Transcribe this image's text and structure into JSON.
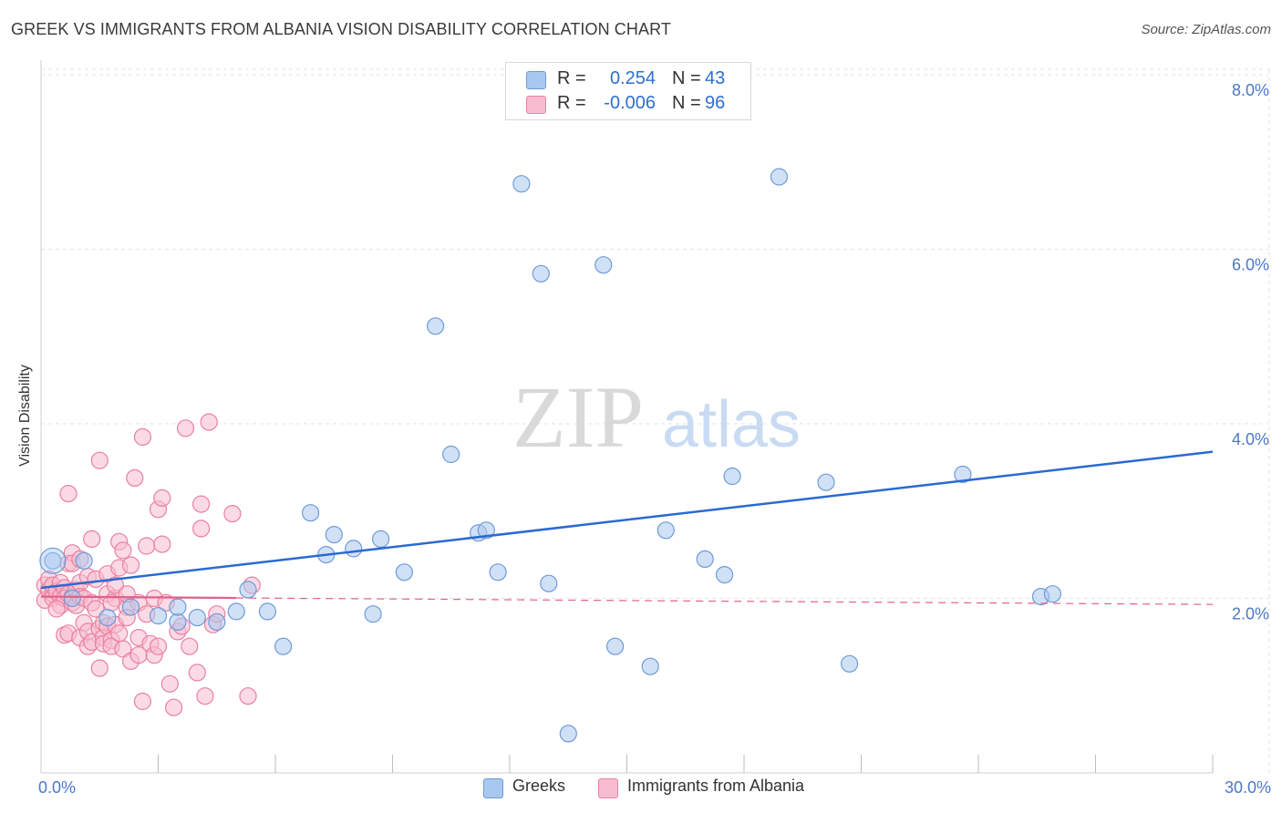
{
  "header": {
    "title": "GREEK VS IMMIGRANTS FROM ALBANIA VISION DISABILITY CORRELATION CHART",
    "source": "Source: ZipAtlas.com"
  },
  "watermark": {
    "zip": "ZIP",
    "atlas": "atlas"
  },
  "colors": {
    "blue_fill": "#a9c8ef",
    "blue_stroke": "#6f9ad8",
    "blue_line": "#2a6ad0",
    "pink_fill": "#f7bcd0",
    "pink_stroke": "#e9809f",
    "pink_line": "#e0628a",
    "tick_text": "#4a78c8",
    "grid": "#e3e3e3"
  },
  "legend_top": {
    "rows": [
      {
        "r_label": "R =",
        "r_value": "0.254",
        "n_label": "N =",
        "n_value": "43",
        "color": "#a9c8ef"
      },
      {
        "r_label": "R =",
        "r_value": "-0.006",
        "n_label": "N =",
        "n_value": "96",
        "color": "#f7bcd0"
      }
    ]
  },
  "legend_bottom": {
    "items": [
      {
        "label": "Greeks",
        "color": "#a9c8ef"
      },
      {
        "label": "Immigrants from Albania",
        "color": "#f7bcd0"
      }
    ]
  },
  "chart_data": {
    "type": "scatter",
    "title": "GREEK VS IMMIGRANTS FROM ALBANIA VISION DISABILITY CORRELATION CHART",
    "xlabel": "",
    "ylabel": "Vision Disability",
    "xlim": [
      0,
      30
    ],
    "ylim": [
      0,
      8
    ],
    "x_tick_labels": [
      "0.0%",
      "30.0%"
    ],
    "y_ticks": [
      2,
      4,
      6,
      8
    ],
    "y_tick_labels": [
      "2.0%",
      "4.0%",
      "6.0%",
      "8.0%"
    ],
    "grid": true,
    "series": [
      {
        "name": "Greeks",
        "R": 0.254,
        "N": 43,
        "trend": {
          "x": [
            0,
            30
          ],
          "y": [
            2.12,
            3.68
          ],
          "style": "solid"
        },
        "points": [
          [
            0.3,
            2.43
          ],
          [
            0.8,
            2.0
          ],
          [
            1.1,
            2.43
          ],
          [
            1.7,
            1.78
          ],
          [
            2.3,
            1.9
          ],
          [
            3.0,
            1.8
          ],
          [
            3.5,
            1.73
          ],
          [
            3.5,
            1.9
          ],
          [
            4.0,
            1.78
          ],
          [
            4.5,
            1.73
          ],
          [
            5.0,
            1.85
          ],
          [
            5.3,
            2.1
          ],
          [
            5.8,
            1.85
          ],
          [
            6.2,
            1.45
          ],
          [
            6.9,
            2.98
          ],
          [
            7.3,
            2.5
          ],
          [
            7.5,
            2.73
          ],
          [
            8.0,
            2.57
          ],
          [
            8.5,
            1.82
          ],
          [
            8.7,
            2.68
          ],
          [
            9.3,
            2.3
          ],
          [
            10.1,
            5.12
          ],
          [
            10.5,
            3.65
          ],
          [
            11.2,
            2.75
          ],
          [
            11.4,
            2.78
          ],
          [
            11.7,
            2.3
          ],
          [
            12.3,
            6.75
          ],
          [
            12.8,
            5.72
          ],
          [
            13.0,
            2.17
          ],
          [
            13.5,
            0.45
          ],
          [
            14.4,
            5.82
          ],
          [
            14.7,
            1.45
          ],
          [
            15.6,
            1.22
          ],
          [
            16.0,
            2.78
          ],
          [
            17.0,
            2.45
          ],
          [
            17.5,
            2.27
          ],
          [
            17.7,
            3.4
          ],
          [
            18.9,
            6.83
          ],
          [
            20.1,
            3.33
          ],
          [
            20.7,
            1.25
          ],
          [
            23.6,
            3.42
          ],
          [
            25.6,
            2.02
          ],
          [
            25.9,
            2.05
          ]
        ]
      },
      {
        "name": "Immigrants from Albania",
        "R": -0.006,
        "N": 96,
        "trend": {
          "x": [
            0,
            30
          ],
          "y": [
            2.02,
            1.93
          ],
          "style": "solid-then-dashed"
        },
        "points": [
          [
            0.1,
            2.15
          ],
          [
            0.1,
            1.98
          ],
          [
            0.2,
            2.1
          ],
          [
            0.2,
            2.22
          ],
          [
            0.3,
            2.05
          ],
          [
            0.3,
            2.0
          ],
          [
            0.3,
            2.15
          ],
          [
            0.4,
            2.08
          ],
          [
            0.5,
            1.92
          ],
          [
            0.5,
            2.18
          ],
          [
            0.5,
            2.02
          ],
          [
            0.6,
            2.12
          ],
          [
            0.6,
            2.0
          ],
          [
            0.6,
            1.58
          ],
          [
            0.7,
            2.4
          ],
          [
            0.7,
            2.05
          ],
          [
            0.7,
            1.6
          ],
          [
            0.7,
            3.2
          ],
          [
            0.8,
            2.02
          ],
          [
            0.8,
            2.52
          ],
          [
            0.8,
            2.4
          ],
          [
            0.8,
            1.95
          ],
          [
            0.9,
            2.1
          ],
          [
            0.9,
            1.92
          ],
          [
            1.0,
            2.18
          ],
          [
            1.0,
            2.02
          ],
          [
            1.0,
            1.55
          ],
          [
            1.0,
            2.45
          ],
          [
            1.1,
            1.72
          ],
          [
            1.1,
            2.0
          ],
          [
            1.2,
            2.25
          ],
          [
            1.2,
            1.45
          ],
          [
            1.2,
            1.62
          ],
          [
            1.3,
            2.68
          ],
          [
            1.3,
            1.95
          ],
          [
            1.3,
            1.5
          ],
          [
            1.4,
            2.22
          ],
          [
            1.4,
            1.88
          ],
          [
            1.5,
            3.58
          ],
          [
            1.5,
            1.65
          ],
          [
            1.5,
            1.2
          ],
          [
            1.6,
            1.72
          ],
          [
            1.6,
            1.55
          ],
          [
            1.6,
            1.48
          ],
          [
            1.7,
            2.05
          ],
          [
            1.7,
            2.28
          ],
          [
            1.7,
            1.68
          ],
          [
            1.8,
            1.52
          ],
          [
            1.8,
            1.45
          ],
          [
            1.9,
            2.0
          ],
          [
            1.9,
            1.7
          ],
          [
            1.9,
            2.15
          ],
          [
            2.0,
            2.35
          ],
          [
            2.0,
            2.65
          ],
          [
            2.0,
            1.6
          ],
          [
            2.1,
            1.42
          ],
          [
            2.1,
            2.55
          ],
          [
            2.2,
            1.9
          ],
          [
            2.2,
            1.78
          ],
          [
            2.3,
            2.38
          ],
          [
            2.3,
            1.28
          ],
          [
            2.4,
            3.38
          ],
          [
            2.5,
            1.55
          ],
          [
            2.5,
            1.95
          ],
          [
            2.5,
            1.35
          ],
          [
            2.6,
            3.85
          ],
          [
            2.6,
            0.82
          ],
          [
            2.7,
            2.6
          ],
          [
            2.7,
            1.82
          ],
          [
            2.8,
            1.48
          ],
          [
            2.9,
            2.0
          ],
          [
            2.9,
            1.35
          ],
          [
            3.0,
            3.02
          ],
          [
            3.0,
            1.45
          ],
          [
            3.1,
            3.15
          ],
          [
            3.1,
            2.62
          ],
          [
            3.2,
            1.95
          ],
          [
            3.3,
            1.02
          ],
          [
            3.4,
            0.75
          ],
          [
            3.5,
            1.62
          ],
          [
            3.6,
            1.68
          ],
          [
            3.7,
            3.95
          ],
          [
            3.8,
            1.45
          ],
          [
            4.0,
            1.15
          ],
          [
            4.1,
            2.8
          ],
          [
            4.1,
            3.08
          ],
          [
            4.2,
            0.88
          ],
          [
            4.3,
            4.02
          ],
          [
            4.4,
            1.7
          ],
          [
            4.5,
            1.82
          ],
          [
            4.9,
            2.97
          ],
          [
            5.3,
            0.88
          ],
          [
            5.4,
            2.15
          ],
          [
            1.8,
            1.95
          ],
          [
            2.2,
            2.05
          ],
          [
            0.4,
            1.88
          ]
        ]
      }
    ]
  }
}
